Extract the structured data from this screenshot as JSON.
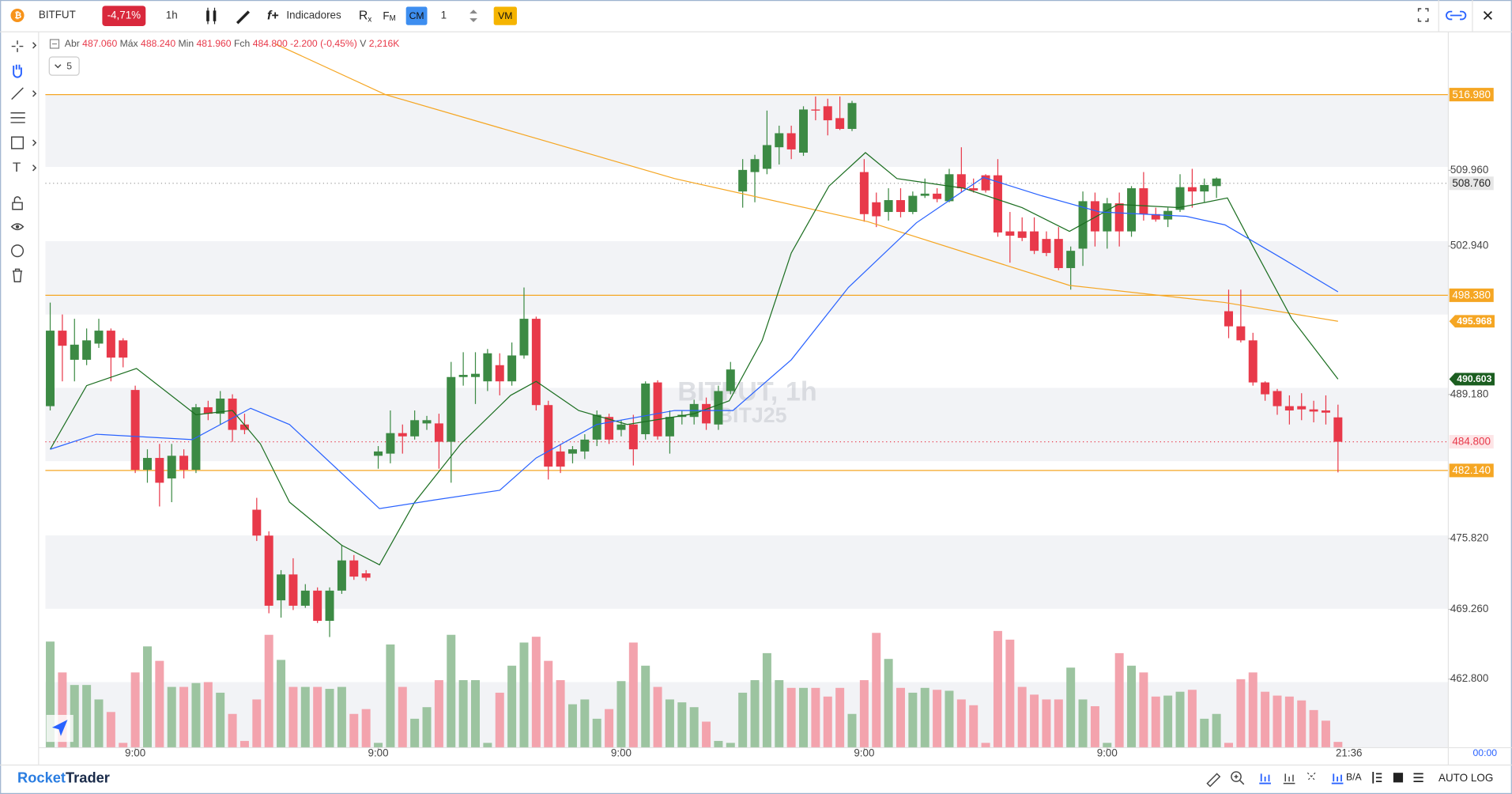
{
  "toolbar": {
    "symbol": "BITFUT",
    "change": "-4,71%",
    "interval": "1h",
    "rx": "R",
    "rx_sub": "x",
    "fm": "F",
    "fm_sub": "M",
    "indicators": "Indicadores",
    "cm": "CM",
    "quantity": "1",
    "vm": "VM"
  },
  "legend": {
    "open_label": "Abr",
    "open": "487.060",
    "high_label": "Máx",
    "high": "488.240",
    "low_label": "Min",
    "low": "481.960",
    "close_label": "Fch",
    "close": "484.800",
    "change": "-2.200 (-0,45%)",
    "volume_label": "V",
    "volume": "2,216K",
    "count": "5"
  },
  "watermark": {
    "title": "BITFUT, 1h",
    "contract": "BITJ25"
  },
  "time_axis": {
    "now": "21:36",
    "countdown": "00:00"
  },
  "footer": {
    "brand_1": "Rocket",
    "brand_2": "Trader",
    "bid_ask": "B/A",
    "auto": "AUTO",
    "log": "LOG"
  },
  "chart_data": {
    "type": "candlestick",
    "up_color": "#3c8a44",
    "down_color": "#e8394a",
    "volume_up_color": "#9cc4a0",
    "volume_down_color": "#f3a3ad",
    "ylim": [
      456.44,
      522.62
    ],
    "yticks": [
      {
        "value": 509.96,
        "label": "509.960"
      },
      {
        "value": 502.94,
        "label": "502.940"
      },
      {
        "value": 489.18,
        "label": "489.180"
      },
      {
        "value": 475.82,
        "label": "475.820"
      },
      {
        "value": 469.26,
        "label": "469.260"
      },
      {
        "value": 462.8,
        "label": "462.800"
      }
    ],
    "xticks": [
      {
        "value": 7,
        "label": "9:00"
      },
      {
        "value": 27,
        "label": "9:00"
      },
      {
        "value": 47,
        "label": "9:00"
      },
      {
        "value": 67,
        "label": "9:00"
      },
      {
        "value": 87,
        "label": "9:00"
      }
    ],
    "open": [
      488.1,
      495.1,
      492.4,
      492.4,
      493.9,
      495.1,
      494.2,
      489.6,
      482.2,
      483.3,
      481.4,
      483.5,
      482.2,
      488.0,
      487.4,
      488.8,
      486.4,
      478.5,
      476.1,
      470.1,
      472.5,
      469.6,
      471.0,
      468.2,
      471.0,
      473.8,
      472.6,
      483.5,
      483.7,
      485.6,
      485.3,
      486.5,
      486.5,
      484.8,
      490.8,
      490.8,
      490.4,
      491.9,
      490.4,
      492.8,
      496.2,
      488.2,
      483.9,
      483.7,
      483.9,
      485.0,
      487.1,
      485.9,
      486.4,
      485.5,
      490.3,
      485.3,
      487.1,
      487.1,
      488.3,
      486.4,
      489.5,
      508.0,
      509.8,
      510.1,
      512.1,
      513.4,
      511.6,
      515.6,
      515.9,
      514.8,
      513.8,
      509.8,
      507.0,
      506.1,
      507.2,
      506.1,
      507.6,
      507.8,
      507.1,
      509.6,
      508.3,
      509.5,
      509.5,
      504.3,
      504.3,
      504.3,
      503.6,
      503.6,
      500.9,
      502.7,
      507.1,
      504.3,
      506.9,
      504.3,
      508.3,
      505.9,
      505.4,
      506.3,
      508.4,
      508.0,
      508.5,
      496.9,
      495.5,
      494.2,
      490.3,
      489.5,
      488.1,
      488.1,
      487.8,
      487.7,
      487.06
    ],
    "high": [
      497.7,
      496.6,
      496.2,
      495.3,
      496.2,
      495.3,
      494.4,
      490.0,
      484.1,
      484.6,
      484.6,
      484.1,
      488.3,
      488.6,
      489.5,
      489.2,
      487.4,
      479.6,
      476.5,
      472.9,
      474.0,
      471.6,
      471.3,
      471.3,
      475.2,
      474.3,
      472.9,
      484.4,
      487.7,
      486.4,
      487.7,
      487.2,
      487.4,
      492.2,
      493.1,
      493.1,
      493.4,
      493.0,
      494.0,
      499.1,
      496.4,
      488.6,
      484.6,
      484.4,
      485.5,
      487.7,
      487.4,
      486.8,
      487.3,
      490.4,
      490.5,
      487.7,
      487.7,
      488.7,
      488.9,
      490.0,
      492.2,
      511.0,
      511.4,
      515.5,
      514.1,
      514.1,
      515.9,
      516.8,
      516.6,
      516.8,
      516.4,
      511.0,
      507.9,
      508.3,
      508.3,
      508.0,
      509.2,
      508.3,
      510.1,
      512.1,
      509.2,
      509.6,
      511.0,
      506.1,
      505.6,
      505.6,
      504.3,
      504.7,
      502.9,
      508.0,
      507.9,
      507.4,
      507.9,
      508.5,
      509.8,
      506.5,
      506.5,
      509.6,
      510.1,
      509.2,
      509.3,
      498.9,
      498.9,
      494.9,
      490.4,
      489.7,
      489.1,
      489.3,
      488.6,
      489.1,
      488.24
    ],
    "low": [
      487.7,
      490.4,
      490.4,
      491.9,
      493.5,
      490.4,
      491.7,
      481.9,
      481.0,
      478.8,
      479.2,
      481.4,
      481.9,
      486.8,
      486.4,
      484.8,
      485.5,
      475.6,
      468.9,
      468.5,
      469.2,
      469.4,
      468.0,
      466.7,
      470.7,
      472.0,
      471.9,
      482.3,
      482.8,
      483.7,
      485.0,
      485.9,
      482.3,
      481.0,
      490.0,
      488.3,
      489.5,
      489.1,
      490.0,
      492.5,
      487.7,
      481.3,
      481.9,
      482.8,
      483.2,
      484.4,
      484.6,
      485.3,
      482.6,
      485.0,
      485.0,
      483.7,
      486.4,
      486.4,
      485.9,
      485.9,
      489.2,
      506.5,
      507.0,
      509.6,
      510.5,
      511.0,
      511.3,
      514.6,
      513.2,
      513.7,
      513.6,
      505.2,
      504.7,
      505.3,
      505.6,
      505.9,
      507.4,
      507.0,
      507.0,
      507.9,
      507.9,
      507.9,
      503.8,
      501.4,
      503.4,
      502.2,
      502.0,
      500.7,
      498.9,
      501.1,
      502.9,
      502.7,
      502.9,
      503.8,
      505.3,
      505.2,
      504.7,
      506.1,
      506.5,
      507.0,
      507.4,
      494.4,
      494.0,
      490.0,
      488.6,
      487.3,
      486.4,
      486.8,
      486.6,
      486.4,
      481.96
    ],
    "close": [
      495.1,
      493.7,
      493.8,
      494.2,
      495.1,
      492.6,
      492.6,
      482.2,
      483.3,
      481.0,
      483.5,
      482.2,
      488.0,
      487.4,
      488.8,
      485.9,
      485.9,
      476.1,
      469.6,
      472.5,
      469.6,
      471.0,
      468.2,
      471.0,
      473.8,
      472.3,
      472.2,
      483.9,
      485.6,
      485.3,
      486.8,
      486.8,
      484.8,
      490.8,
      491.0,
      491.1,
      493.0,
      490.4,
      492.8,
      496.2,
      488.2,
      482.5,
      482.5,
      484.1,
      485.0,
      487.3,
      485.0,
      486.4,
      484.1,
      490.2,
      485.3,
      487.1,
      487.3,
      488.3,
      486.5,
      489.5,
      491.5,
      510.0,
      511.0,
      512.3,
      513.4,
      511.9,
      515.6,
      515.5,
      514.6,
      513.8,
      516.2,
      505.9,
      505.7,
      507.2,
      506.1,
      507.6,
      507.8,
      507.3,
      509.6,
      508.3,
      508.1,
      508.1,
      504.2,
      503.9,
      503.7,
      502.5,
      502.3,
      500.9,
      502.5,
      507.1,
      504.3,
      506.9,
      504.3,
      508.3,
      505.9,
      505.4,
      506.2,
      508.4,
      508.0,
      508.6,
      509.2,
      495.5,
      494.2,
      490.3,
      489.2,
      488.1,
      487.7,
      487.8,
      487.6,
      487.5,
      484.8
    ],
    "volume": [
      40700,
      28860,
      24050,
      24050,
      18500,
      13690,
      1850,
      28860,
      38850,
      33300,
      23310,
      23310,
      24790,
      25160,
      21090,
      12950,
      2590,
      18500,
      43290,
      33670,
      23310,
      23310,
      23310,
      22570,
      23310,
      12950,
      14800,
      1850,
      39590,
      23310,
      11100,
      15540,
      25900,
      43290,
      25900,
      25900,
      1850,
      21090,
      31450,
      40330,
      42550,
      33300,
      25900,
      16650,
      18500,
      11100,
      14800,
      25530,
      40330,
      31450,
      23310,
      18500,
      17390,
      15540,
      9990,
      2590,
      1850,
      21090,
      25900,
      36260,
      25900,
      22940,
      22940,
      22940,
      19610,
      22940,
      12950,
      25900,
      44030,
      34040,
      22940,
      21090,
      22940,
      22200,
      21830,
      18500,
      16280,
      1850,
      44770,
      41440,
      23310,
      20350,
      18500,
      18500,
      30710,
      18500,
      15910,
      1850,
      36260,
      31450,
      28860,
      19610,
      19980,
      21460,
      22200,
      11100,
      12950,
      1850,
      26270,
      28860,
      21460,
      19980,
      19610,
      18130,
      14430,
      10360,
      2216
    ],
    "indicators": [
      {
        "color": "#f5a623",
        "tag_color": "#f5a623",
        "x": [
          18.5,
          27.6,
          51.4,
          67.3,
          83.9,
          96.7,
          106
        ],
        "values": [
          521.7,
          516.98,
          509.2,
          505.2,
          499.3,
          497.7,
          495.968
        ]
      },
      {
        "color": "#1b6e20",
        "tag_color": "#1b5e20",
        "x": [
          0,
          3,
          7.1,
          12,
          15,
          17.3,
          19.7,
          24,
          27.1,
          30,
          33.8,
          37.9,
          40,
          43.5,
          47.5,
          53,
          55.9,
          58.6,
          61,
          64.1,
          67.1,
          69.7,
          75.2,
          80,
          83.9,
          87.9,
          92.9,
          96.9,
          99,
          102.2,
          106
        ],
        "values": [
          484.1,
          490.0,
          491.6,
          487.3,
          487.7,
          484.6,
          479.2,
          475.2,
          473.4,
          479.2,
          484.6,
          489.1,
          490.4,
          487.7,
          486.4,
          487.4,
          488.6,
          494.2,
          502.3,
          508.5,
          511.6,
          509.2,
          508.3,
          506.5,
          504.3,
          506.8,
          506.5,
          507.4,
          502.9,
          496.2,
          490.603
        ]
      },
      {
        "color": "#2962ff",
        "x": [
          0,
          3.8,
          11.7,
          16.5,
          19.7,
          27.1,
          31.6,
          37,
          40,
          45,
          51.4,
          56.2,
          61,
          65.7,
          71.3,
          76.8,
          81.6,
          86.4,
          93.5,
          96.7,
          101.4,
          106
        ],
        "values": [
          484.1,
          485.5,
          485.0,
          487.9,
          486.4,
          478.6,
          479.4,
          480.3,
          483.3,
          486.4,
          487.7,
          487.7,
          492.4,
          499.1,
          505.1,
          509.3,
          507.6,
          506.1,
          505.7,
          504.9,
          501.8,
          498.7
        ]
      }
    ],
    "hlines": [
      {
        "value": 516.98,
        "label": "516.980"
      },
      {
        "value": 498.38,
        "label": "498.380"
      },
      {
        "value": 482.14,
        "label": "482.140"
      }
    ],
    "hline_color": "#f5a623",
    "price_tags": [
      {
        "value": 508.76,
        "label": "508.760",
        "color": "#9e9e9e"
      },
      {
        "value": 484.8,
        "label": "484.800",
        "color": "#e8394a"
      }
    ]
  }
}
